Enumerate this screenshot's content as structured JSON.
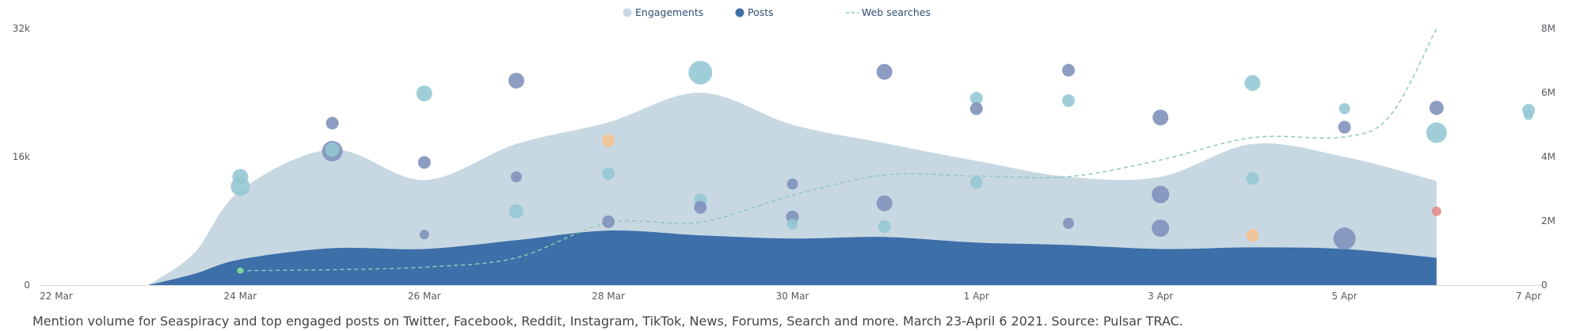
{
  "chart_data": {
    "type": "area",
    "title": "",
    "x_ticks": [
      "22 Mar",
      "24 Mar",
      "26 Mar",
      "28 Mar",
      "30 Mar",
      "1 Apr",
      "3 Apr",
      "5 Apr",
      "7 Apr"
    ],
    "y_left_ticks": [
      "0",
      "16k",
      "32k"
    ],
    "y_right_ticks": [
      "0",
      "2M",
      "4M",
      "6M",
      "8M"
    ],
    "ylim_left": [
      0,
      32000
    ],
    "ylim_right": [
      0,
      8000000
    ],
    "xlim_days": [
      "2021-03-22",
      "2021-04-07"
    ],
    "legend": {
      "position": "top-center",
      "items": [
        {
          "name": "Engagements",
          "marker": "circle",
          "color": "#c8d8e2"
        },
        {
          "name": "Posts",
          "marker": "circle",
          "color": "#3d6fa9"
        },
        {
          "name": "Web searches",
          "marker": "dashed-line",
          "color": "#8ccbb4"
        }
      ]
    },
    "series": [
      {
        "name": "Engagements",
        "kind": "area",
        "color": "#c8d8e2",
        "points": [
          [
            "2021-03-23 00:00",
            0
          ],
          [
            "2021-03-23 12:00",
            4000
          ],
          [
            "2021-03-24 00:00",
            11800
          ],
          [
            "2021-03-25 00:00",
            16900
          ],
          [
            "2021-03-26 00:00",
            13100
          ],
          [
            "2021-03-27 00:00",
            17600
          ],
          [
            "2021-03-28 00:00",
            20300
          ],
          [
            "2021-03-29 00:00",
            24000
          ],
          [
            "2021-03-30 00:00",
            20000
          ],
          [
            "2021-03-31 00:00",
            17700
          ],
          [
            "2021-04-01 00:00",
            15500
          ],
          [
            "2021-04-02 00:00",
            13500
          ],
          [
            "2021-04-03 00:00",
            13500
          ],
          [
            "2021-04-04 00:00",
            17600
          ],
          [
            "2021-04-05 00:00",
            16000
          ],
          [
            "2021-04-06 00:00",
            13000
          ]
        ]
      },
      {
        "name": "Posts",
        "kind": "area",
        "color": "#3d6fa9",
        "points": [
          [
            "2021-03-23 00:00",
            0
          ],
          [
            "2021-03-23 12:00",
            1400
          ],
          [
            "2021-03-24 00:00",
            3200
          ],
          [
            "2021-03-25 00:00",
            4600
          ],
          [
            "2021-03-26 00:00",
            4500
          ],
          [
            "2021-03-27 00:00",
            5600
          ],
          [
            "2021-03-28 00:00",
            6800
          ],
          [
            "2021-03-29 00:00",
            6200
          ],
          [
            "2021-03-30 00:00",
            5800
          ],
          [
            "2021-03-31 00:00",
            6000
          ],
          [
            "2021-04-01 00:00",
            5300
          ],
          [
            "2021-04-02 00:00",
            5000
          ],
          [
            "2021-04-03 00:00",
            4500
          ],
          [
            "2021-04-04 00:00",
            4700
          ],
          [
            "2021-04-05 00:00",
            4500
          ],
          [
            "2021-04-06 00:00",
            3400
          ]
        ]
      },
      {
        "name": "Web searches",
        "kind": "line",
        "axis": "right",
        "color": "#8ccbb4",
        "points": [
          [
            "2021-03-24 00:00",
            450000
          ],
          [
            "2021-03-25 00:00",
            480000
          ],
          [
            "2021-03-26 00:00",
            560000
          ],
          [
            "2021-03-27 00:00",
            850000
          ],
          [
            "2021-03-28 00:00",
            1940000
          ],
          [
            "2021-03-29 00:00",
            1960000
          ],
          [
            "2021-03-30 00:00",
            2800000
          ],
          [
            "2021-03-31 00:00",
            3430000
          ],
          [
            "2021-04-01 00:00",
            3400000
          ],
          [
            "2021-04-02 00:00",
            3380000
          ],
          [
            "2021-04-03 00:00",
            3900000
          ],
          [
            "2021-04-04 00:00",
            4600000
          ],
          [
            "2021-04-05 00:00",
            4620000
          ],
          [
            "2021-04-05 12:00",
            5300000
          ],
          [
            "2021-04-06 00:00",
            8000000
          ]
        ]
      }
    ],
    "top_posts": [
      {
        "t": "2021-03-24 00:00",
        "y": 13500,
        "r": 10,
        "color": "#93c7d3"
      },
      {
        "t": "2021-03-24 00:00",
        "y": 12300,
        "r": 12,
        "color": "#93c7d3"
      },
      {
        "t": "2021-03-25 00:00",
        "y": 20200,
        "r": 8,
        "color": "#7d90ba"
      },
      {
        "t": "2021-03-25 00:00",
        "y": 16700,
        "r": 13,
        "color": "#7d90ba"
      },
      {
        "t": "2021-03-25 00:00",
        "y": 16900,
        "r": 9,
        "color": "#93c7d3"
      },
      {
        "t": "2021-03-26 00:00",
        "y": 23900,
        "r": 10,
        "color": "#93c7d3"
      },
      {
        "t": "2021-03-26 00:00",
        "y": 15300,
        "r": 8,
        "color": "#7d90ba"
      },
      {
        "t": "2021-03-26 00:00",
        "y": 6300,
        "r": 6,
        "color": "#7d90ba"
      },
      {
        "t": "2021-03-27 00:00",
        "y": 25500,
        "r": 10,
        "color": "#7d90ba"
      },
      {
        "t": "2021-03-27 00:00",
        "y": 13500,
        "r": 7,
        "color": "#7d90ba"
      },
      {
        "t": "2021-03-27 00:00",
        "y": 9200,
        "r": 9,
        "color": "#93c7d3"
      },
      {
        "t": "2021-03-28 00:00",
        "y": 18000,
        "r": 8,
        "color": "#f5c18f"
      },
      {
        "t": "2021-03-28 00:00",
        "y": 13900,
        "r": 8,
        "color": "#93c7d3"
      },
      {
        "t": "2021-03-28 00:00",
        "y": 7900,
        "r": 8,
        "color": "#7d90ba"
      },
      {
        "t": "2021-03-29 00:00",
        "y": 26500,
        "r": 15,
        "color": "#93c7d3"
      },
      {
        "t": "2021-03-29 00:00",
        "y": 10600,
        "r": 8,
        "color": "#93c7d3"
      },
      {
        "t": "2021-03-29 00:00",
        "y": 9700,
        "r": 8,
        "color": "#7d90ba"
      },
      {
        "t": "2021-03-30 00:00",
        "y": 12600,
        "r": 7,
        "color": "#7d90ba"
      },
      {
        "t": "2021-03-30 00:00",
        "y": 8500,
        "r": 8,
        "color": "#7d90ba"
      },
      {
        "t": "2021-03-30 00:00",
        "y": 7600,
        "r": 7,
        "color": "#93c7d3"
      },
      {
        "t": "2021-03-31 00:00",
        "y": 26600,
        "r": 10,
        "color": "#7d90ba"
      },
      {
        "t": "2021-03-31 00:00",
        "y": 10200,
        "r": 10,
        "color": "#7d90ba"
      },
      {
        "t": "2021-03-31 00:00",
        "y": 7300,
        "r": 8,
        "color": "#93c7d3"
      },
      {
        "t": "2021-04-01 00:00",
        "y": 23300,
        "r": 8,
        "color": "#93c7d3"
      },
      {
        "t": "2021-04-01 00:00",
        "y": 22000,
        "r": 8,
        "color": "#7d90ba"
      },
      {
        "t": "2021-04-01 00:00",
        "y": 12800,
        "r": 8,
        "color": "#93c7d3"
      },
      {
        "t": "2021-04-02 00:00",
        "y": 26800,
        "r": 8,
        "color": "#7d90ba"
      },
      {
        "t": "2021-04-02 00:00",
        "y": 23000,
        "r": 8,
        "color": "#93c7d3"
      },
      {
        "t": "2021-04-02 00:00",
        "y": 7700,
        "r": 7,
        "color": "#7d90ba"
      },
      {
        "t": "2021-04-03 00:00",
        "y": 20900,
        "r": 10,
        "color": "#7d90ba"
      },
      {
        "t": "2021-04-03 00:00",
        "y": 11300,
        "r": 11,
        "color": "#7d90ba"
      },
      {
        "t": "2021-04-03 00:00",
        "y": 7100,
        "r": 11,
        "color": "#7d90ba"
      },
      {
        "t": "2021-04-04 00:00",
        "y": 25200,
        "r": 10,
        "color": "#93c7d3"
      },
      {
        "t": "2021-04-04 00:00",
        "y": 13300,
        "r": 8,
        "color": "#93c7d3"
      },
      {
        "t": "2021-04-04 00:00",
        "y": 6200,
        "r": 8,
        "color": "#f5c18f"
      },
      {
        "t": "2021-04-05 00:00",
        "y": 22000,
        "r": 7,
        "color": "#93c7d3"
      },
      {
        "t": "2021-04-05 00:00",
        "y": 19700,
        "r": 8,
        "color": "#7d90ba"
      },
      {
        "t": "2021-04-05 00:00",
        "y": 5800,
        "r": 14,
        "color": "#7d90ba"
      },
      {
        "t": "2021-04-06 00:00",
        "y": 22100,
        "r": 9,
        "color": "#7d90ba"
      },
      {
        "t": "2021-04-06 00:00",
        "y": 19000,
        "r": 13,
        "color": "#93c7d3"
      },
      {
        "t": "2021-04-06 00:00",
        "y": 9200,
        "r": 6,
        "color": "#e18a85"
      },
      {
        "t": "2021-04-07 00:00",
        "y": 21800,
        "r": 8,
        "color": "#93c7d3"
      },
      {
        "t": "2021-04-07 00:00",
        "y": 21200,
        "r": 6,
        "color": "#93c7d3"
      }
    ],
    "grid": false
  },
  "caption": "Mention volume for Seaspiracy and top engaged posts on Twitter, Facebook, Reddit, Instagram, TikTok, News, Forums, Search and more. March 23-April 6 2021. Source: Pulsar TRAC."
}
